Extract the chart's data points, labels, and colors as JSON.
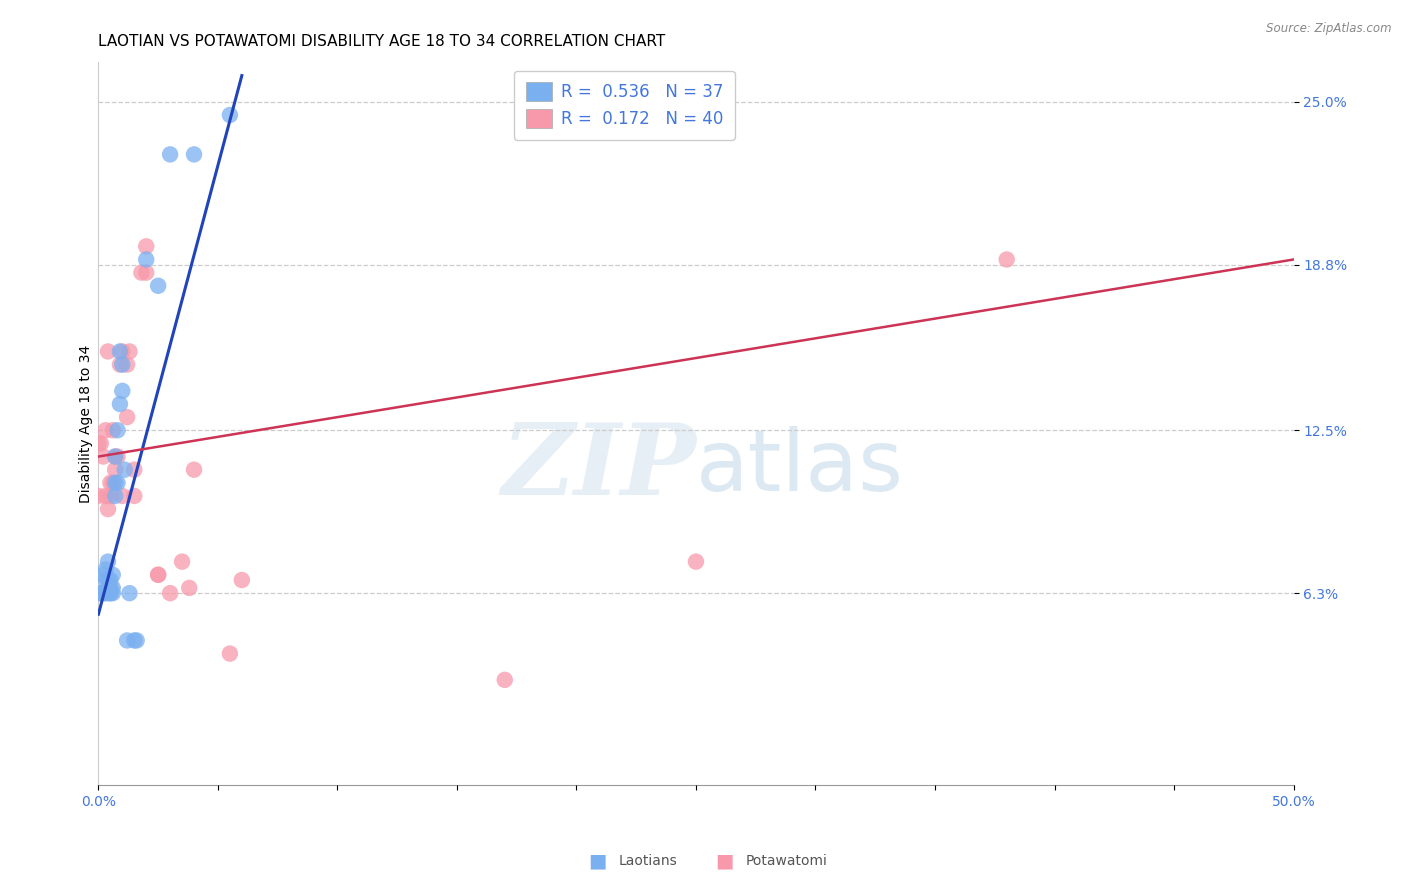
{
  "title": "LAOTIAN VS POTAWATOMI DISABILITY AGE 18 TO 34 CORRELATION CHART",
  "source": "Source: ZipAtlas.com",
  "ylabel": "Disability Age 18 to 34",
  "xlim": [
    0.0,
    0.5
  ],
  "ylim": [
    -0.01,
    0.265
  ],
  "xticks": [
    0.0,
    0.05,
    0.1,
    0.15,
    0.2,
    0.25,
    0.3,
    0.35,
    0.4,
    0.45,
    0.5
  ],
  "ytick_positions": [
    0.063,
    0.125,
    0.188,
    0.25
  ],
  "ytick_labels": [
    "6.3%",
    "12.5%",
    "18.8%",
    "25.0%"
  ],
  "legend_laotian_R": "0.536",
  "legend_laotian_N": "37",
  "legend_potawatomi_R": "0.172",
  "legend_potawatomi_N": "40",
  "blue_scatter_color": "#7aaff0",
  "pink_scatter_color": "#f799aa",
  "blue_line_color": "#2244bb",
  "pink_line_color": "#cc3355",
  "blue_tick_color": "#4477dd",
  "laotian_x": [
    0.001,
    0.001,
    0.002,
    0.002,
    0.003,
    0.003,
    0.003,
    0.004,
    0.004,
    0.004,
    0.004,
    0.005,
    0.005,
    0.005,
    0.005,
    0.006,
    0.006,
    0.006,
    0.007,
    0.007,
    0.007,
    0.008,
    0.008,
    0.009,
    0.009,
    0.01,
    0.01,
    0.011,
    0.012,
    0.013,
    0.015,
    0.016,
    0.02,
    0.025,
    0.03,
    0.04,
    0.055
  ],
  "laotian_y": [
    0.063,
    0.063,
    0.063,
    0.07,
    0.063,
    0.068,
    0.072,
    0.063,
    0.065,
    0.068,
    0.075,
    0.063,
    0.063,
    0.065,
    0.068,
    0.063,
    0.065,
    0.07,
    0.1,
    0.105,
    0.115,
    0.105,
    0.125,
    0.135,
    0.155,
    0.14,
    0.15,
    0.11,
    0.045,
    0.063,
    0.045,
    0.045,
    0.19,
    0.18,
    0.23,
    0.23,
    0.245
  ],
  "potawatomi_x": [
    0.0,
    0.0,
    0.001,
    0.001,
    0.002,
    0.002,
    0.003,
    0.003,
    0.004,
    0.004,
    0.005,
    0.005,
    0.006,
    0.006,
    0.007,
    0.007,
    0.008,
    0.009,
    0.01,
    0.01,
    0.012,
    0.012,
    0.013,
    0.015,
    0.015,
    0.018,
    0.02,
    0.02,
    0.025,
    0.025,
    0.03,
    0.035,
    0.038,
    0.04,
    0.055,
    0.06,
    0.17,
    0.2,
    0.25,
    0.38
  ],
  "potawatomi_y": [
    0.1,
    0.12,
    0.063,
    0.12,
    0.063,
    0.115,
    0.1,
    0.125,
    0.095,
    0.155,
    0.1,
    0.105,
    0.125,
    0.105,
    0.11,
    0.115,
    0.115,
    0.15,
    0.1,
    0.155,
    0.13,
    0.15,
    0.155,
    0.1,
    0.11,
    0.185,
    0.185,
    0.195,
    0.07,
    0.07,
    0.063,
    0.075,
    0.065,
    0.11,
    0.04,
    0.068,
    0.03,
    0.248,
    0.075,
    0.19
  ],
  "blue_line_x": [
    0.0,
    0.06
  ],
  "blue_line_y": [
    0.055,
    0.26
  ],
  "pink_line_x": [
    0.0,
    0.5
  ],
  "pink_line_y": [
    0.115,
    0.19
  ],
  "watermark_zip": "ZIP",
  "watermark_atlas": "atlas",
  "title_fontsize": 11,
  "axis_label_fontsize": 10,
  "tick_fontsize": 10,
  "legend_fontsize": 12
}
